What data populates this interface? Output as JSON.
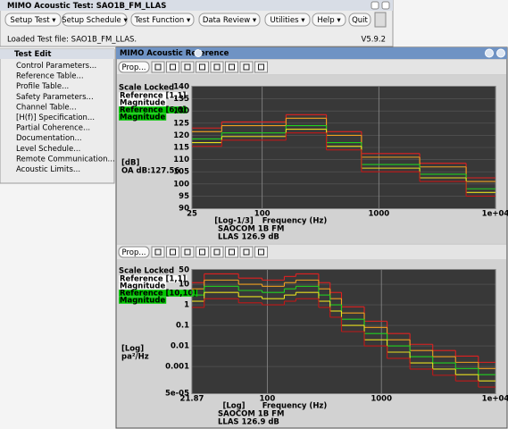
{
  "main_window": {
    "title": "MIMO Acoustic Test: SAO1B_FM_LLAS",
    "menu": [
      {
        "label": "Setup Test ▾"
      },
      {
        "label": "Setup Schedule ▾",
        "disabled": true
      },
      {
        "label": "Test Function ▾"
      },
      {
        "label": "Data Review ▾"
      },
      {
        "label": "Utilities ▾"
      },
      {
        "label": "Help ▾"
      },
      {
        "label": "Quit"
      }
    ],
    "status": "Loaded Test file: SAO1B_FM_LLAS.",
    "version": "V5.9.2"
  },
  "test_edit": {
    "title": "Test Edit",
    "items": [
      {
        "label": "Control Parameters..."
      },
      {
        "label": "Reference Table..."
      },
      {
        "label": "Profile Table..."
      },
      {
        "label": "Safety Parameters..."
      },
      {
        "label": "Channel Table..."
      },
      {
        "label": "[H(f)] Specification..."
      },
      {
        "label": "Partial Coherence..."
      },
      {
        "label": "Documentation..."
      },
      {
        "label": "Level Schedule..."
      },
      {
        "label": "Remote Communication...",
        "disabled": true
      },
      {
        "label": "Acoustic Limits..."
      }
    ]
  },
  "reference_window": {
    "title": "MIMO Acoustic Reference",
    "plots": [
      {
        "type": "step",
        "button": "Prop...",
        "scale_note": "Scale Locked",
        "legend": [
          {
            "text": "Reference [1,1]",
            "color": "#ffffff"
          },
          {
            "text": "Magnitude",
            "color": "#ffffff"
          },
          {
            "text": "Reference [6,6]",
            "color": "#00c800"
          },
          {
            "text": "Magnitude",
            "color": "#00c800"
          }
        ],
        "y_unit": [
          "[dB]"
        ],
        "y_note": "OA dB:127.56",
        "x_scale": "[Log]",
        "x_scale_detail": "[Log-1/3]",
        "xlabel": "Frequency (Hz)",
        "footer": [
          "SAOCOM 1B FM",
          "LLAS 126.9 dB"
        ],
        "xlog": true,
        "ylog": false,
        "grid": true,
        "xlim": [
          25,
          10000
        ],
        "xticks": [
          25,
          100,
          1000,
          {
            "value": 10000,
            "label": "1e+04"
          }
        ],
        "ylim": [
          90,
          140
        ],
        "yticks": [
          90,
          95,
          100,
          105,
          110,
          115,
          120,
          125,
          130,
          135,
          140
        ],
        "bins": [
          25,
          45,
          160,
          355,
          710,
          2240,
          5600,
          10000
        ],
        "series": [
          {
            "color": "#e02020",
            "values": [
              123,
              125.5,
              128.5,
              121.5,
              112.5,
              108.5,
              102.5
            ]
          },
          {
            "color": "#f0a020",
            "values": [
              121.5,
              124,
              127,
              120,
              111,
              107,
              101
            ]
          },
          {
            "color": "#20d020",
            "values": [
              118.5,
              121,
              124,
              117,
              108,
              104,
              98
            ]
          },
          {
            "color": "#e8e020",
            "values": [
              117,
              119.5,
              122.5,
              115.5,
              106.5,
              102.5,
              96.5
            ]
          },
          {
            "color": "#c01818",
            "values": [
              115.5,
              118,
              121,
              114,
              105,
              101,
              95
            ]
          }
        ]
      },
      {
        "type": "step",
        "button": "Prop...",
        "scale_note": "Scale Locked",
        "legend": [
          {
            "text": "Reference [1,1]",
            "color": "#ffffff"
          },
          {
            "text": "Magnitude",
            "color": "#ffffff"
          },
          {
            "text": "Reference [10,10]",
            "color": "#00c800"
          },
          {
            "text": "Magnitude",
            "color": "#00c800"
          }
        ],
        "y_unit": [
          "[Log]",
          "pa²/Hz"
        ],
        "x_scale": "[Log]",
        "xlabel": "Frequency (Hz)",
        "footer": [
          "SAOCOM 1B FM",
          "LLAS 126.9 dB"
        ],
        "xlog": true,
        "ylog": true,
        "grid": true,
        "xlim": [
          21.87,
          10000
        ],
        "xticks": [
          21.87,
          100,
          1000,
          {
            "value": 10000,
            "label": "1e+04"
          }
        ],
        "ylim": [
          5e-05,
          50
        ],
        "yticks": [
          {
            "value": 5e-05,
            "label": "5e-05"
          },
          0.001,
          0.01,
          0.1,
          1,
          10,
          50
        ],
        "bins": [
          21.87,
          28,
          56,
          90,
          141,
          178,
          282,
          355,
          447,
          708,
          1122,
          1778,
          2818,
          4467,
          7079,
          10000
        ],
        "series": [
          {
            "color": "#e02020",
            "values": [
              12,
              32,
              20,
              16,
              24,
              32,
              12,
              4,
              0.8,
              0.16,
              0.04,
              0.012,
              0.006,
              0.0032,
              0.0016
            ]
          },
          {
            "color": "#f0a020",
            "values": [
              6,
              16,
              10,
              8,
              12,
              16,
              6,
              2,
              0.4,
              0.08,
              0.02,
              0.006,
              0.003,
              0.0016,
              0.0008
            ]
          },
          {
            "color": "#20d020",
            "values": [
              3,
              8,
              5,
              4,
              6,
              8,
              3,
              1,
              0.2,
              0.04,
              0.01,
              0.003,
              0.0015,
              0.0008,
              0.0004
            ]
          },
          {
            "color": "#e8e020",
            "values": [
              1.5,
              4,
              2.5,
              2,
              3,
              4,
              1.5,
              0.5,
              0.1,
              0.02,
              0.005,
              0.0015,
              0.00075,
              0.0004,
              0.0002
            ]
          },
          {
            "color": "#c01818",
            "values": [
              0.75,
              2,
              1.25,
              1,
              1.5,
              2,
              0.75,
              0.25,
              0.05,
              0.01,
              0.0025,
              0.00075,
              0.000375,
              0.0002,
              0.0001
            ]
          }
        ]
      }
    ]
  }
}
